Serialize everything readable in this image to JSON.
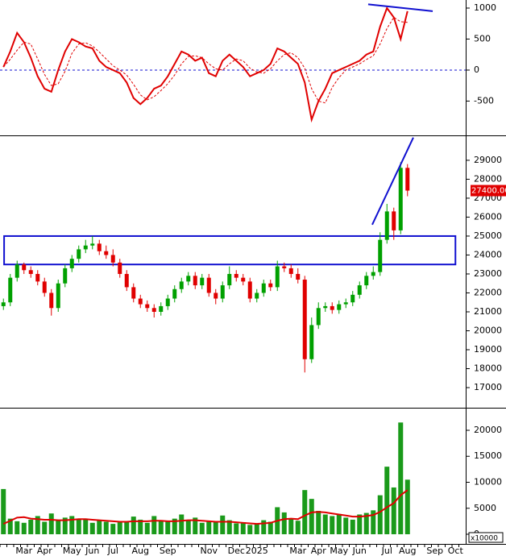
{
  "chart_data": [
    {
      "type": "line",
      "ylim": [
        -1040,
        1130
      ],
      "yticks": [
        -500,
        0,
        500,
        1000
      ],
      "zero_line": {
        "value": 0,
        "color": "#1010d0"
      },
      "series": [
        {
          "color": "#e00000",
          "values": [
            50,
            300,
            600,
            450,
            200,
            -100,
            -300,
            -350,
            0,
            300,
            500,
            450,
            380,
            350,
            150,
            50,
            0,
            -50,
            -200,
            -450,
            -550,
            -450,
            -300,
            -250,
            -100,
            100,
            300,
            250,
            150,
            200,
            -50,
            -100,
            150,
            250,
            150,
            50,
            -100,
            -50,
            0,
            100,
            350,
            300,
            200,
            100,
            -200,
            -800,
            -500,
            -300,
            -50,
            0,
            50,
            100,
            150,
            250,
            300,
            700,
            1000,
            850,
            500,
            950
          ]
        },
        {
          "color": "#e00000",
          "dashed": true,
          "values": [
            50,
            175,
            320,
            450,
            420,
            180,
            -70,
            -250,
            -220,
            -20,
            270,
            420,
            440,
            390,
            290,
            180,
            70,
            0,
            -80,
            -230,
            -400,
            -480,
            -430,
            -330,
            -220,
            -80,
            100,
            220,
            230,
            200,
            100,
            20,
            0,
            100,
            180,
            150,
            30,
            -30,
            -50,
            20,
            150,
            250,
            280,
            200,
            30,
            -300,
            -500,
            -530,
            -280,
            -120,
            0,
            50,
            100,
            170,
            230,
            420,
            670,
            850,
            780,
            770
          ]
        }
      ],
      "trendline": {
        "x": [
          53.26,
          62.68
        ],
        "y": [
          1060,
          950
        ],
        "color": "#1010d0"
      }
    },
    {
      "type": "candlestick",
      "ylim": [
        15980,
        30230
      ],
      "yticks": [
        17000,
        18000,
        19000,
        20000,
        21000,
        22000,
        23000,
        24000,
        25000,
        26000,
        27000,
        28000,
        29000
      ],
      "up_color": "#00a000",
      "down_color": "#e00000",
      "open": [
        21300,
        21500,
        22800,
        23500,
        23200,
        23000,
        22600,
        22000,
        21200,
        22500,
        23300,
        23800,
        24300,
        24500,
        24600,
        24200,
        24000,
        23600,
        23000,
        22300,
        21700,
        21400,
        21200,
        21000,
        21300,
        21700,
        22200,
        22600,
        22900,
        22400,
        22800,
        22000,
        21700,
        22400,
        23000,
        22800,
        22600,
        21700,
        22000,
        22500,
        22300,
        23400,
        23300,
        23000,
        22700,
        18500,
        20300,
        21200,
        21300,
        21100,
        21400,
        21500,
        21900,
        22400,
        22900,
        23100,
        24800,
        26300,
        25300,
        28600
      ],
      "high": [
        21700,
        23000,
        23700,
        23600,
        23400,
        23200,
        22800,
        22200,
        22700,
        23500,
        24000,
        24500,
        24800,
        25000,
        24800,
        24500,
        24300,
        23800,
        23200,
        22500,
        21900,
        21600,
        21400,
        21500,
        21900,
        22400,
        22800,
        23100,
        23100,
        23000,
        23000,
        22200,
        22600,
        23400,
        23200,
        23000,
        22800,
        22200,
        22700,
        22700,
        23700,
        23600,
        23500,
        23300,
        22900,
        20700,
        21500,
        21500,
        21500,
        21600,
        21700,
        22100,
        22600,
        23100,
        23400,
        25200,
        26700,
        26500,
        28900,
        28800
      ],
      "low": [
        21100,
        21300,
        22600,
        23000,
        22800,
        22400,
        21800,
        20800,
        21000,
        22300,
        23100,
        23600,
        24100,
        24300,
        24000,
        23800,
        23400,
        22800,
        22100,
        21500,
        21200,
        21000,
        20700,
        20800,
        21100,
        21500,
        22000,
        22400,
        22200,
        22200,
        21800,
        21400,
        21500,
        22200,
        22600,
        22400,
        21500,
        21500,
        21800,
        22100,
        22100,
        23100,
        22800,
        22500,
        17800,
        18300,
        20100,
        21000,
        20900,
        20900,
        21200,
        21300,
        21700,
        22200,
        22700,
        22900,
        24600,
        24800,
        25100,
        27100
      ],
      "close": [
        21500,
        22800,
        23500,
        23200,
        23000,
        22600,
        22000,
        21200,
        22500,
        23300,
        23800,
        24300,
        24500,
        24600,
        24200,
        24000,
        23600,
        23000,
        22300,
        21700,
        21400,
        21200,
        21000,
        21300,
        21700,
        22200,
        22600,
        22900,
        22400,
        22800,
        22000,
        21700,
        22400,
        23000,
        22800,
        22600,
        21700,
        22000,
        22500,
        22300,
        23400,
        23300,
        23000,
        22700,
        18500,
        20300,
        21200,
        21300,
        21100,
        21400,
        21500,
        21900,
        22400,
        22900,
        23100,
        24800,
        26300,
        25300,
        28600,
        27400
      ],
      "last_price": {
        "value": 27400,
        "label": "27400.00"
      },
      "zone": {
        "x": [
          0.1,
          66
        ],
        "y": [
          23500,
          25000
        ],
        "color": "#1010d0"
      },
      "trendline": {
        "x": [
          53.85,
          59.85
        ],
        "y": [
          25600,
          30200
        ],
        "color": "#1010d0"
      }
    },
    {
      "type": "bar",
      "ylim": [
        -1860,
        24030
      ],
      "yticks": [
        0,
        5000,
        10000,
        15000,
        20000
      ],
      "unit_label": "x10000",
      "categories": [
        null,
        null,
        null,
        "Mar",
        null,
        null,
        "Apr",
        null,
        null,
        null,
        "May",
        null,
        null,
        "Jun",
        null,
        null,
        "Jul",
        null,
        null,
        null,
        "Aug",
        null,
        null,
        null,
        "Sep",
        null,
        null,
        null,
        null,
        null,
        "Nov",
        null,
        null,
        null,
        "Dec",
        null,
        null,
        "2025",
        null,
        null,
        null,
        null,
        null,
        "Mar",
        null,
        null,
        "Apr",
        null,
        null,
        "May",
        null,
        null,
        "Jun",
        null,
        null,
        null,
        "Jul",
        null,
        null,
        "Aug",
        null,
        null,
        null,
        "Sep",
        null,
        null,
        "Oct",
        null
      ],
      "series": [
        {
          "type": "bar",
          "color": "#1a9a1a",
          "values": [
            8700,
            3000,
            2500,
            2200,
            2800,
            3500,
            2400,
            4000,
            2600,
            3200,
            3500,
            3000,
            2800,
            2200,
            2600,
            2400,
            2000,
            2300,
            2500,
            3400,
            2800,
            2200,
            3500,
            2700,
            2400,
            3000,
            3800,
            2600,
            3200,
            2200,
            2400,
            2500,
            3600,
            2700,
            2100,
            2300,
            1800,
            2000,
            2700,
            2400,
            5200,
            4200,
            3000,
            2600,
            8500,
            6800,
            4500,
            3800,
            3500,
            3900,
            3200,
            2800,
            3800,
            4100,
            4600,
            7500,
            13000,
            9000,
            21500,
            10500,
            null,
            null,
            null,
            null,
            null,
            null,
            null,
            null
          ]
        },
        {
          "type": "line",
          "color": "#e00000",
          "values": [
            2000,
            2600,
            3200,
            3300,
            3000,
            2900,
            2800,
            2800,
            2700,
            2700,
            2800,
            2900,
            2900,
            2800,
            2700,
            2600,
            2500,
            2400,
            2400,
            2500,
            2500,
            2500,
            2600,
            2600,
            2500,
            2500,
            2600,
            2700,
            2700,
            2600,
            2500,
            2400,
            2400,
            2400,
            2300,
            2200,
            2100,
            2000,
            2100,
            2200,
            2600,
            2900,
            3000,
            2900,
            3600,
            4200,
            4300,
            4200,
            4000,
            3800,
            3600,
            3400,
            3400,
            3500,
            3700,
            4300,
            5200,
            6000,
            7500,
            8500,
            null,
            null,
            null,
            null,
            null,
            null,
            null,
            null
          ]
        }
      ]
    }
  ]
}
